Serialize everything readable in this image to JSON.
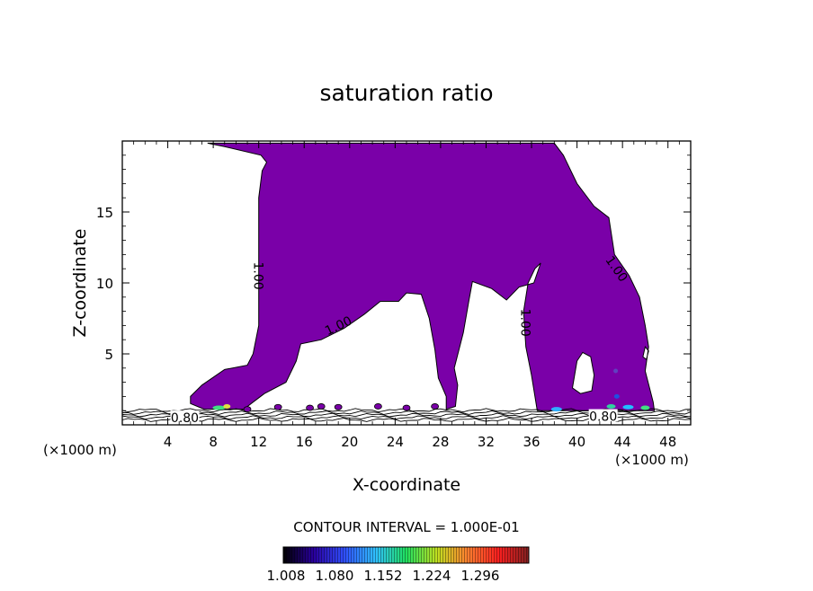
{
  "chart_data": {
    "type": "contour",
    "title": "saturation ratio",
    "xlabel": "X-coordinate",
    "ylabel": "Z-coordinate",
    "x_unit_left": "(×1000 m)",
    "x_unit_right": "(×1000 m)",
    "xlim": [
      0,
      50
    ],
    "ylim": [
      0,
      20
    ],
    "x_ticks": [
      4,
      8,
      12,
      16,
      20,
      24,
      28,
      32,
      36,
      40,
      44,
      48
    ],
    "y_ticks": [
      5,
      10,
      15
    ],
    "contour_interval_text": "CONTOUR INTERVAL = 1.000E-01",
    "contour_labels": [
      {
        "text": "1.00",
        "x": 12,
        "z": 10.5,
        "angle": 90
      },
      {
        "text": "1.00",
        "x": 19,
        "z": 7.0,
        "angle": -25
      },
      {
        "text": "1.00",
        "x": 35.5,
        "z": 7.2,
        "angle": 90
      },
      {
        "text": "1.00",
        "x": 43.5,
        "z": 11.0,
        "angle": 55
      },
      {
        "text": "0.80",
        "x": 5.5,
        "z": 0.5,
        "angle": 0
      },
      {
        "text": "0.80",
        "x": 42.3,
        "z": 0.6,
        "angle": 0
      }
    ],
    "filled_region": {
      "level_min": 1.0,
      "fill_color": "#7a00a8",
      "outline": [
        [
          6,
          2
        ],
        [
          7,
          2.8
        ],
        [
          9,
          3.9
        ],
        [
          11,
          4.2
        ],
        [
          11.5,
          5.0
        ],
        [
          12.0,
          7.0
        ],
        [
          12.0,
          10.0
        ],
        [
          12.0,
          13.0
        ],
        [
          12.0,
          16.0
        ],
        [
          12.3,
          17.9
        ],
        [
          12.7,
          18.5
        ],
        [
          12.2,
          19.0
        ],
        [
          9.0,
          19.6
        ],
        [
          7.5,
          19.85
        ],
        [
          24,
          19.85
        ],
        [
          38,
          19.85
        ],
        [
          38.8,
          19.0
        ],
        [
          40.0,
          17.0
        ],
        [
          41.5,
          15.4
        ],
        [
          42.8,
          14.6
        ],
        [
          43.3,
          12.0
        ],
        [
          44.6,
          10.5
        ],
        [
          45.5,
          9.0
        ],
        [
          46.0,
          7.0
        ],
        [
          46.3,
          5.5
        ],
        [
          46.0,
          3.8
        ],
        [
          46.7,
          1.6
        ],
        [
          46.8,
          1.0
        ],
        [
          36.5,
          1.0
        ],
        [
          36.0,
          3.5
        ],
        [
          35.5,
          5.5
        ],
        [
          35.3,
          8.0
        ],
        [
          35.7,
          10.0
        ],
        [
          36.3,
          11.0
        ],
        [
          36.8,
          11.4
        ],
        [
          36.2,
          10.0
        ],
        [
          34.9,
          9.7
        ],
        [
          33.8,
          8.8
        ],
        [
          32.5,
          9.6
        ],
        [
          30.8,
          10.1
        ],
        [
          30.5,
          8.8
        ],
        [
          30.0,
          6.5
        ],
        [
          29.2,
          4.0
        ],
        [
          29.5,
          2.8
        ],
        [
          29.3,
          1.3
        ],
        [
          28.5,
          1.1
        ],
        [
          28.5,
          2.0
        ],
        [
          27.8,
          3.3
        ],
        [
          27.5,
          5.3
        ],
        [
          27.0,
          7.5
        ],
        [
          26.3,
          9.2
        ],
        [
          25.0,
          9.3
        ],
        [
          24.3,
          8.7
        ],
        [
          22.7,
          8.7
        ],
        [
          21.3,
          7.8
        ],
        [
          19.5,
          6.8
        ],
        [
          17.5,
          6.0
        ],
        [
          15.7,
          5.7
        ],
        [
          15.3,
          4.5
        ],
        [
          14.4,
          3.0
        ],
        [
          12.5,
          2.2
        ],
        [
          11.5,
          1.6
        ],
        [
          10.7,
          1.1
        ],
        [
          7.2,
          1.1
        ],
        [
          6.0,
          1.5
        ]
      ],
      "holes": [
        [
          [
            39.6,
            2.6
          ],
          [
            40.0,
            4.5
          ],
          [
            40.5,
            5.1
          ],
          [
            41.2,
            4.8
          ],
          [
            41.5,
            3.5
          ],
          [
            41.3,
            2.4
          ],
          [
            40.3,
            2.2
          ]
        ],
        [
          [
            45.8,
            4.8
          ],
          [
            46.0,
            5.5
          ],
          [
            46.3,
            5.2
          ],
          [
            46.1,
            4.6
          ]
        ]
      ]
    },
    "colorbar": {
      "tick_labels": [
        "1.008",
        "1.080",
        "1.152",
        "1.224",
        "1.296"
      ],
      "stops": [
        "#000000",
        "#2a00a0",
        "#3050ff",
        "#30c0ff",
        "#20e060",
        "#c0e020",
        "#ff8030",
        "#ff2020",
        "#802020"
      ]
    }
  }
}
